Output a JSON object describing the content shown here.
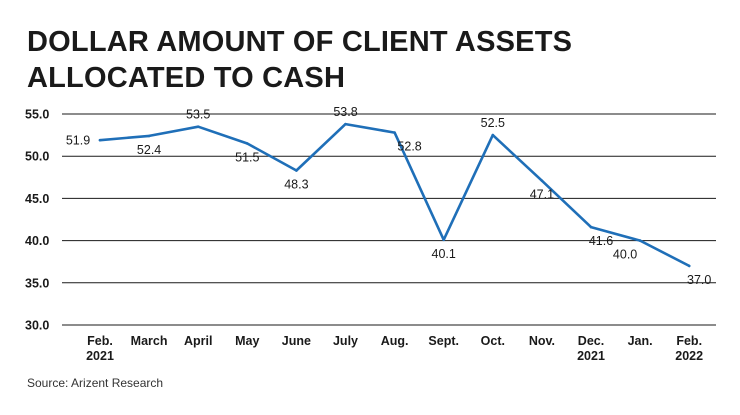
{
  "title": "DOLLAR AMOUNT OF CLIENT ASSETS ALLOCATED TO CASH",
  "source": "Source: Arizent Research",
  "colors": {
    "line": "#1f6fb8",
    "grid": "#1a1a1a",
    "text": "#1a1a1a"
  },
  "chart_data": {
    "type": "line",
    "title": "DOLLAR AMOUNT OF CLIENT ASSETS ALLOCATED TO CASH",
    "xlabel": "",
    "ylabel": "",
    "ylim": [
      30,
      55
    ],
    "yticks": [
      "30.0",
      "35.0",
      "40.0",
      "45.0",
      "50.0",
      "55.0"
    ],
    "grid": true,
    "categories": [
      [
        "Feb.",
        "2021"
      ],
      [
        "March"
      ],
      [
        "April"
      ],
      [
        "May"
      ],
      [
        "June"
      ],
      [
        "July"
      ],
      [
        "Aug."
      ],
      [
        "Sept."
      ],
      [
        "Oct."
      ],
      [
        "Nov."
      ],
      [
        "Dec.",
        "2021"
      ],
      [
        "Jan."
      ],
      [
        "Feb.",
        "2022"
      ]
    ],
    "values": [
      51.9,
      52.4,
      53.5,
      51.5,
      48.3,
      53.8,
      52.8,
      40.1,
      52.5,
      47.1,
      41.6,
      40.0,
      37.0
    ],
    "labels": [
      "51.9",
      "52.4",
      "53.5",
      "51.5",
      "48.3",
      "53.8",
      "52.8",
      "40.1",
      "52.5",
      "47.1",
      "41.6",
      "40.0",
      "37.0"
    ]
  }
}
